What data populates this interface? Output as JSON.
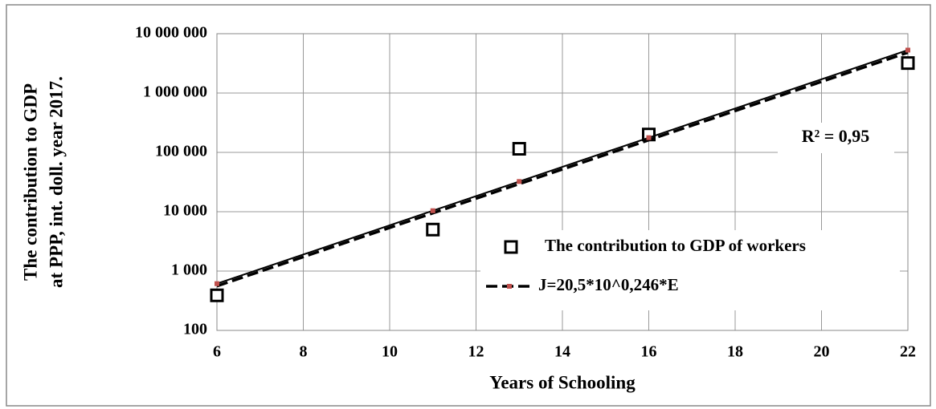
{
  "chart_data": {
    "type": "scatter",
    "x_label": "Years of Schooling",
    "y_label": [
      "The contribution to GDP",
      "at PPP, int. doll. year 2017."
    ],
    "annotation": "R² = 0,95",
    "xlim": [
      6,
      22
    ],
    "xticks": [
      6,
      8,
      10,
      12,
      14,
      16,
      18,
      20,
      22
    ],
    "ylim": [
      100,
      10000000
    ],
    "log_y": true,
    "grid": true,
    "yticks": [
      {
        "value": 100,
        "label": "100"
      },
      {
        "value": 1000,
        "label": "1 000"
      },
      {
        "value": 10000,
        "label": "10 000"
      },
      {
        "value": 100000,
        "label": "100 000"
      },
      {
        "value": 1000000,
        "label": "1 000 000"
      },
      {
        "value": 10000000,
        "label": "10 000 000"
      }
    ],
    "series": [
      {
        "name": "The contribution to GDP of workers",
        "type": "scatter",
        "color": "#000000",
        "x": [
          6,
          11,
          13,
          16,
          22
        ],
        "values": [
          390,
          5000,
          115000,
          200000,
          3200000
        ]
      },
      {
        "name": "J=20,5*10^0,246*E",
        "type": "line",
        "color": "#000000",
        "marker_color": "#c0504d",
        "x": [
          6,
          11,
          13,
          16,
          22
        ],
        "values": [
          613,
          10400,
          32300,
          177000,
          5290000
        ]
      }
    ]
  }
}
